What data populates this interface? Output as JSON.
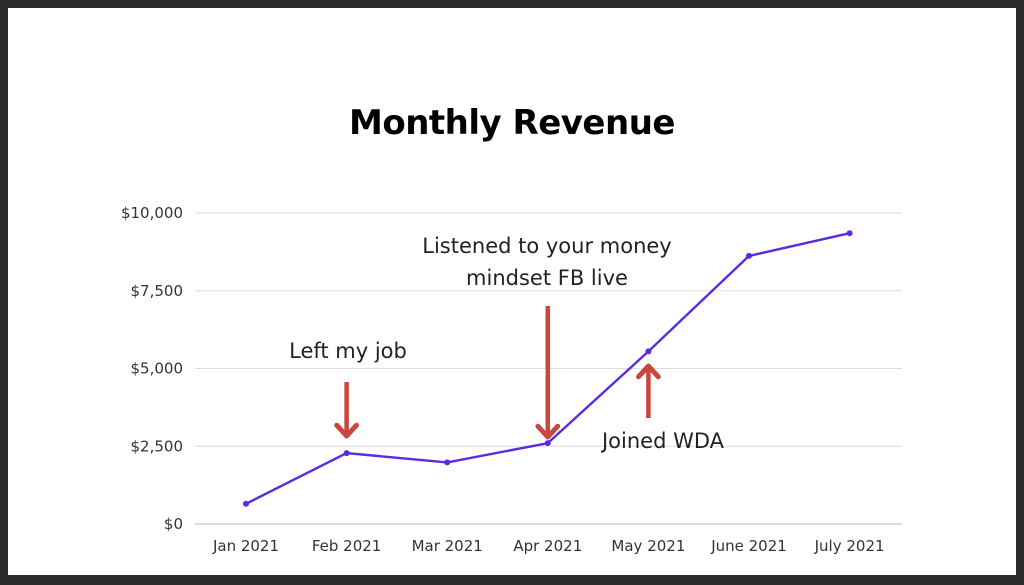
{
  "chart_data": {
    "type": "line",
    "title": "Monthly Revenue",
    "categories": [
      "Jan 2021",
      "Feb 2021",
      "Mar 2021",
      "Apr 2021",
      "May 2021",
      "June 2021",
      "July 2021"
    ],
    "values": [
      650,
      2280,
      1980,
      2600,
      5550,
      8620,
      9350
    ],
    "ylim": [
      0,
      10000
    ],
    "yticks": [
      0,
      2500,
      5000,
      7500,
      10000
    ],
    "ytick_labels": [
      "$0",
      "$2,500",
      "$5,000",
      "$7,500",
      "$10,000"
    ],
    "grid": true,
    "xlabel": "",
    "ylabel": "",
    "annotations": [
      {
        "text": "Left my job",
        "category": "Feb 2021",
        "arrow": "down"
      },
      {
        "text": "Listened to your money mindset FB live",
        "lines": [
          "Listened to your money",
          "mindset FB live"
        ],
        "category": "Apr 2021",
        "arrow": "down"
      },
      {
        "text": "Joined WDA",
        "category": "May 2021",
        "arrow": "up"
      }
    ]
  },
  "colors": {
    "line": "#5b2be0",
    "arrow": "#c8463c",
    "grid": "#dcdcdc",
    "frame": "#2b2b2b",
    "background": "#ffffff"
  }
}
